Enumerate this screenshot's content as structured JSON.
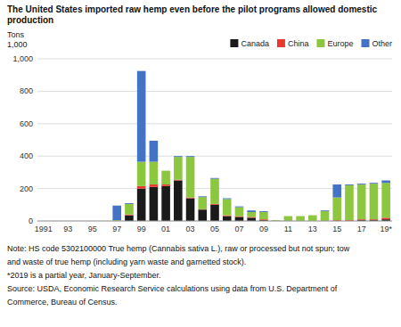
{
  "chart_data": {
    "type": "bar",
    "stacked": true,
    "grid": true,
    "legend": "upper right",
    "title": "The United States imported raw hemp even before the pilot programs allowed domestic\nproduction",
    "ylabel": "Tons\n1,000",
    "categories": [
      "1991",
      null,
      "93",
      null,
      "95",
      null,
      "97",
      null,
      "99",
      null,
      "01",
      null,
      "03",
      null,
      "05",
      null,
      "07",
      null,
      "09",
      null,
      "11",
      null,
      "13",
      null,
      "15",
      null,
      "17",
      null,
      "19*"
    ],
    "series": [
      {
        "name": "Canada",
        "color": "#1a1a1a",
        "values": [
          0,
          0,
          0,
          0,
          0,
          0,
          0,
          35,
          200,
          210,
          215,
          250,
          140,
          70,
          100,
          30,
          25,
          20,
          5,
          0,
          0,
          0,
          0,
          0,
          0,
          0,
          5,
          5,
          10
        ]
      },
      {
        "name": "China",
        "color": "#e63b2e",
        "values": [
          0,
          0,
          0,
          0,
          0,
          0,
          0,
          5,
          15,
          15,
          10,
          5,
          5,
          2,
          5,
          5,
          5,
          5,
          5,
          0,
          0,
          0,
          0,
          0,
          5,
          5,
          5,
          5,
          10
        ]
      },
      {
        "name": "Europe",
        "color": "#8dc63f",
        "values": [
          0,
          0,
          0,
          0,
          0,
          0,
          5,
          65,
          150,
          140,
          85,
          140,
          250,
          75,
          155,
          100,
          55,
          30,
          45,
          5,
          30,
          30,
          35,
          60,
          140,
          215,
          215,
          220,
          215
        ]
      },
      {
        "name": "Other",
        "color": "#4472c4",
        "values": [
          0,
          0,
          0,
          0,
          0,
          0,
          90,
          5,
          560,
          130,
          0,
          5,
          5,
          5,
          5,
          5,
          5,
          10,
          5,
          0,
          0,
          0,
          0,
          5,
          80,
          5,
          5,
          5,
          15
        ]
      }
    ],
    "ylim": [
      0,
      1000
    ],
    "yticks": [
      0,
      200,
      400,
      600,
      800,
      {
        "value": 1000,
        "label": "1,000"
      }
    ],
    "annotations": [
      "Note: HS code 5302100000 True hemp (Cannabis sativa L.), raw or processed but not spun; tow",
      "and waste of true hemp (including yarn waste and garnetted stock).",
      "*2019 is a partial year, January-September.",
      "Source: USDA, Economic Research Service calculations using data from U.S. Department of",
      "Commerce, Bureau of Census."
    ]
  }
}
